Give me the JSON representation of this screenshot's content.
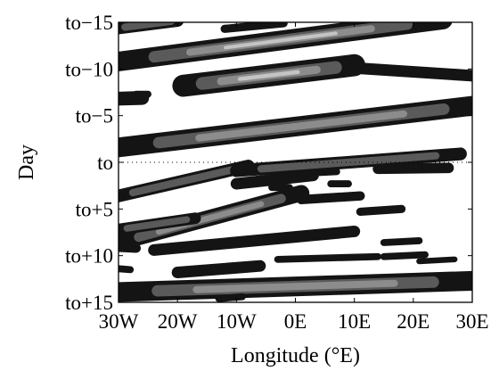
{
  "chart_data": {
    "type": "heatmap",
    "title": "",
    "xlabel": "Longitude (°E)",
    "ylabel": "Day",
    "x_ticks": [
      {
        "value": -30,
        "label": "30W"
      },
      {
        "value": -20,
        "label": "20W"
      },
      {
        "value": -10,
        "label": "10W"
      },
      {
        "value": 0,
        "label": "0E"
      },
      {
        "value": 10,
        "label": "10E"
      },
      {
        "value": 20,
        "label": "20E"
      },
      {
        "value": 30,
        "label": "30E"
      }
    ],
    "y_ticks": [
      {
        "value": -15,
        "label": "to−15"
      },
      {
        "value": -10,
        "label": "to−10"
      },
      {
        "value": -5,
        "label": "to−5"
      },
      {
        "value": 0,
        "label": "to"
      },
      {
        "value": 5,
        "label": "to+5"
      },
      {
        "value": 10,
        "label": "to+10"
      },
      {
        "value": 15,
        "label": "to+15"
      }
    ],
    "xlim": [
      -30,
      30
    ],
    "ylim": [
      -15,
      15
    ],
    "y_inverted": true,
    "grid": false,
    "reference_line": {
      "axis": "y",
      "value": 0,
      "style": "dotted"
    },
    "contour_levels": [
      {
        "level": 1,
        "color": "#141414"
      },
      {
        "level": 2,
        "color": "#5a5a5a"
      },
      {
        "level": 3,
        "color": "#8c8c8c"
      },
      {
        "level": 4,
        "color": "#c4c4c4"
      }
    ],
    "bands": [
      {
        "x0": -30,
        "y0": -14.4,
        "x1": -20,
        "y1": -15.2,
        "w": 0.55,
        "peak": 2
      },
      {
        "x0": -12,
        "y0": -14.3,
        "x1": -2,
        "y1": -14.9,
        "w": 0.35,
        "peak": 1
      },
      {
        "x0": -30,
        "y0": -10.8,
        "x1": 25,
        "y1": -15.3,
        "w": 0.85,
        "peak": 4
      },
      {
        "x0": -31,
        "y0": -6.8,
        "x1": -26,
        "y1": -6.9,
        "w": 0.6,
        "peak": 1
      },
      {
        "x0": -27,
        "y0": -7.3,
        "x1": -25,
        "y1": -7.3,
        "w": 0.3,
        "peak": 1
      },
      {
        "x0": -19,
        "y0": -8.2,
        "x1": 10,
        "y1": -10.4,
        "w": 0.95,
        "peak": 4
      },
      {
        "x0": 10,
        "y0": -10.1,
        "x1": 32,
        "y1": -9.2,
        "w": 0.5,
        "peak": 1
      },
      {
        "x0": -30,
        "y0": -1.6,
        "x1": 32,
        "y1": -6.2,
        "w": 0.85,
        "peak": 3
      },
      {
        "x0": -30,
        "y0": 3.6,
        "x1": -8,
        "y1": 0.4,
        "w": 0.55,
        "peak": 2
      },
      {
        "x0": -10,
        "y0": 0.9,
        "x1": 28,
        "y1": -0.9,
        "w": 0.55,
        "peak": 2
      },
      {
        "x0": -10,
        "y0": 2.3,
        "x1": 3,
        "y1": 1.4,
        "w": 0.5,
        "peak": 1
      },
      {
        "x0": 4,
        "y0": 1.1,
        "x1": 7,
        "y1": 1.0,
        "w": 0.3,
        "peak": 1
      },
      {
        "x0": 14,
        "y0": 0.7,
        "x1": 26,
        "y1": 0.6,
        "w": 0.45,
        "peak": 1
      },
      {
        "x0": -4,
        "y0": 2.7,
        "x1": -1,
        "y1": 2.7,
        "w": 0.3,
        "peak": 1
      },
      {
        "x0": 6,
        "y0": 2.3,
        "x1": 9,
        "y1": 2.3,
        "w": 0.3,
        "peak": 1
      },
      {
        "x0": -30,
        "y0": 8.6,
        "x1": 1,
        "y1": 3.3,
        "w": 0.7,
        "peak": 3
      },
      {
        "x0": -30,
        "y0": 7.2,
        "x1": -17,
        "y1": 6.0,
        "w": 0.5,
        "peak": 2
      },
      {
        "x0": 1,
        "y0": 4.0,
        "x1": 11,
        "y1": 3.6,
        "w": 0.4,
        "peak": 1
      },
      {
        "x0": 11,
        "y0": 5.3,
        "x1": 18,
        "y1": 5.0,
        "w": 0.35,
        "peak": 1
      },
      {
        "x0": -24,
        "y0": 9.4,
        "x1": 10,
        "y1": 7.4,
        "w": 0.5,
        "peak": 1
      },
      {
        "x0": 15,
        "y0": 8.6,
        "x1": 21,
        "y1": 8.4,
        "w": 0.3,
        "peak": 1
      },
      {
        "x0": -30,
        "y0": 9.1,
        "x1": -27,
        "y1": 9.2,
        "w": 0.4,
        "peak": 1
      },
      {
        "x0": 15,
        "y0": 10.1,
        "x1": 22,
        "y1": 9.9,
        "w": 0.3,
        "peak": 1
      },
      {
        "x0": -20,
        "y0": 11.8,
        "x1": -6,
        "y1": 11.1,
        "w": 0.5,
        "peak": 1
      },
      {
        "x0": -3,
        "y0": 10.4,
        "x1": 14,
        "y1": 10.1,
        "w": 0.3,
        "peak": 1
      },
      {
        "x0": -30,
        "y0": 11.4,
        "x1": -28,
        "y1": 11.5,
        "w": 0.3,
        "peak": 1
      },
      {
        "x0": 21,
        "y0": 10.6,
        "x1": 27,
        "y1": 10.4,
        "w": 0.25,
        "peak": 1
      },
      {
        "x0": -30,
        "y0": 13.9,
        "x1": 30,
        "y1": 12.7,
        "w": 0.85,
        "peak": 3
      },
      {
        "x0": -13,
        "y0": 14.6,
        "x1": -9,
        "y1": 14.4,
        "w": 0.3,
        "peak": 1
      }
    ]
  }
}
